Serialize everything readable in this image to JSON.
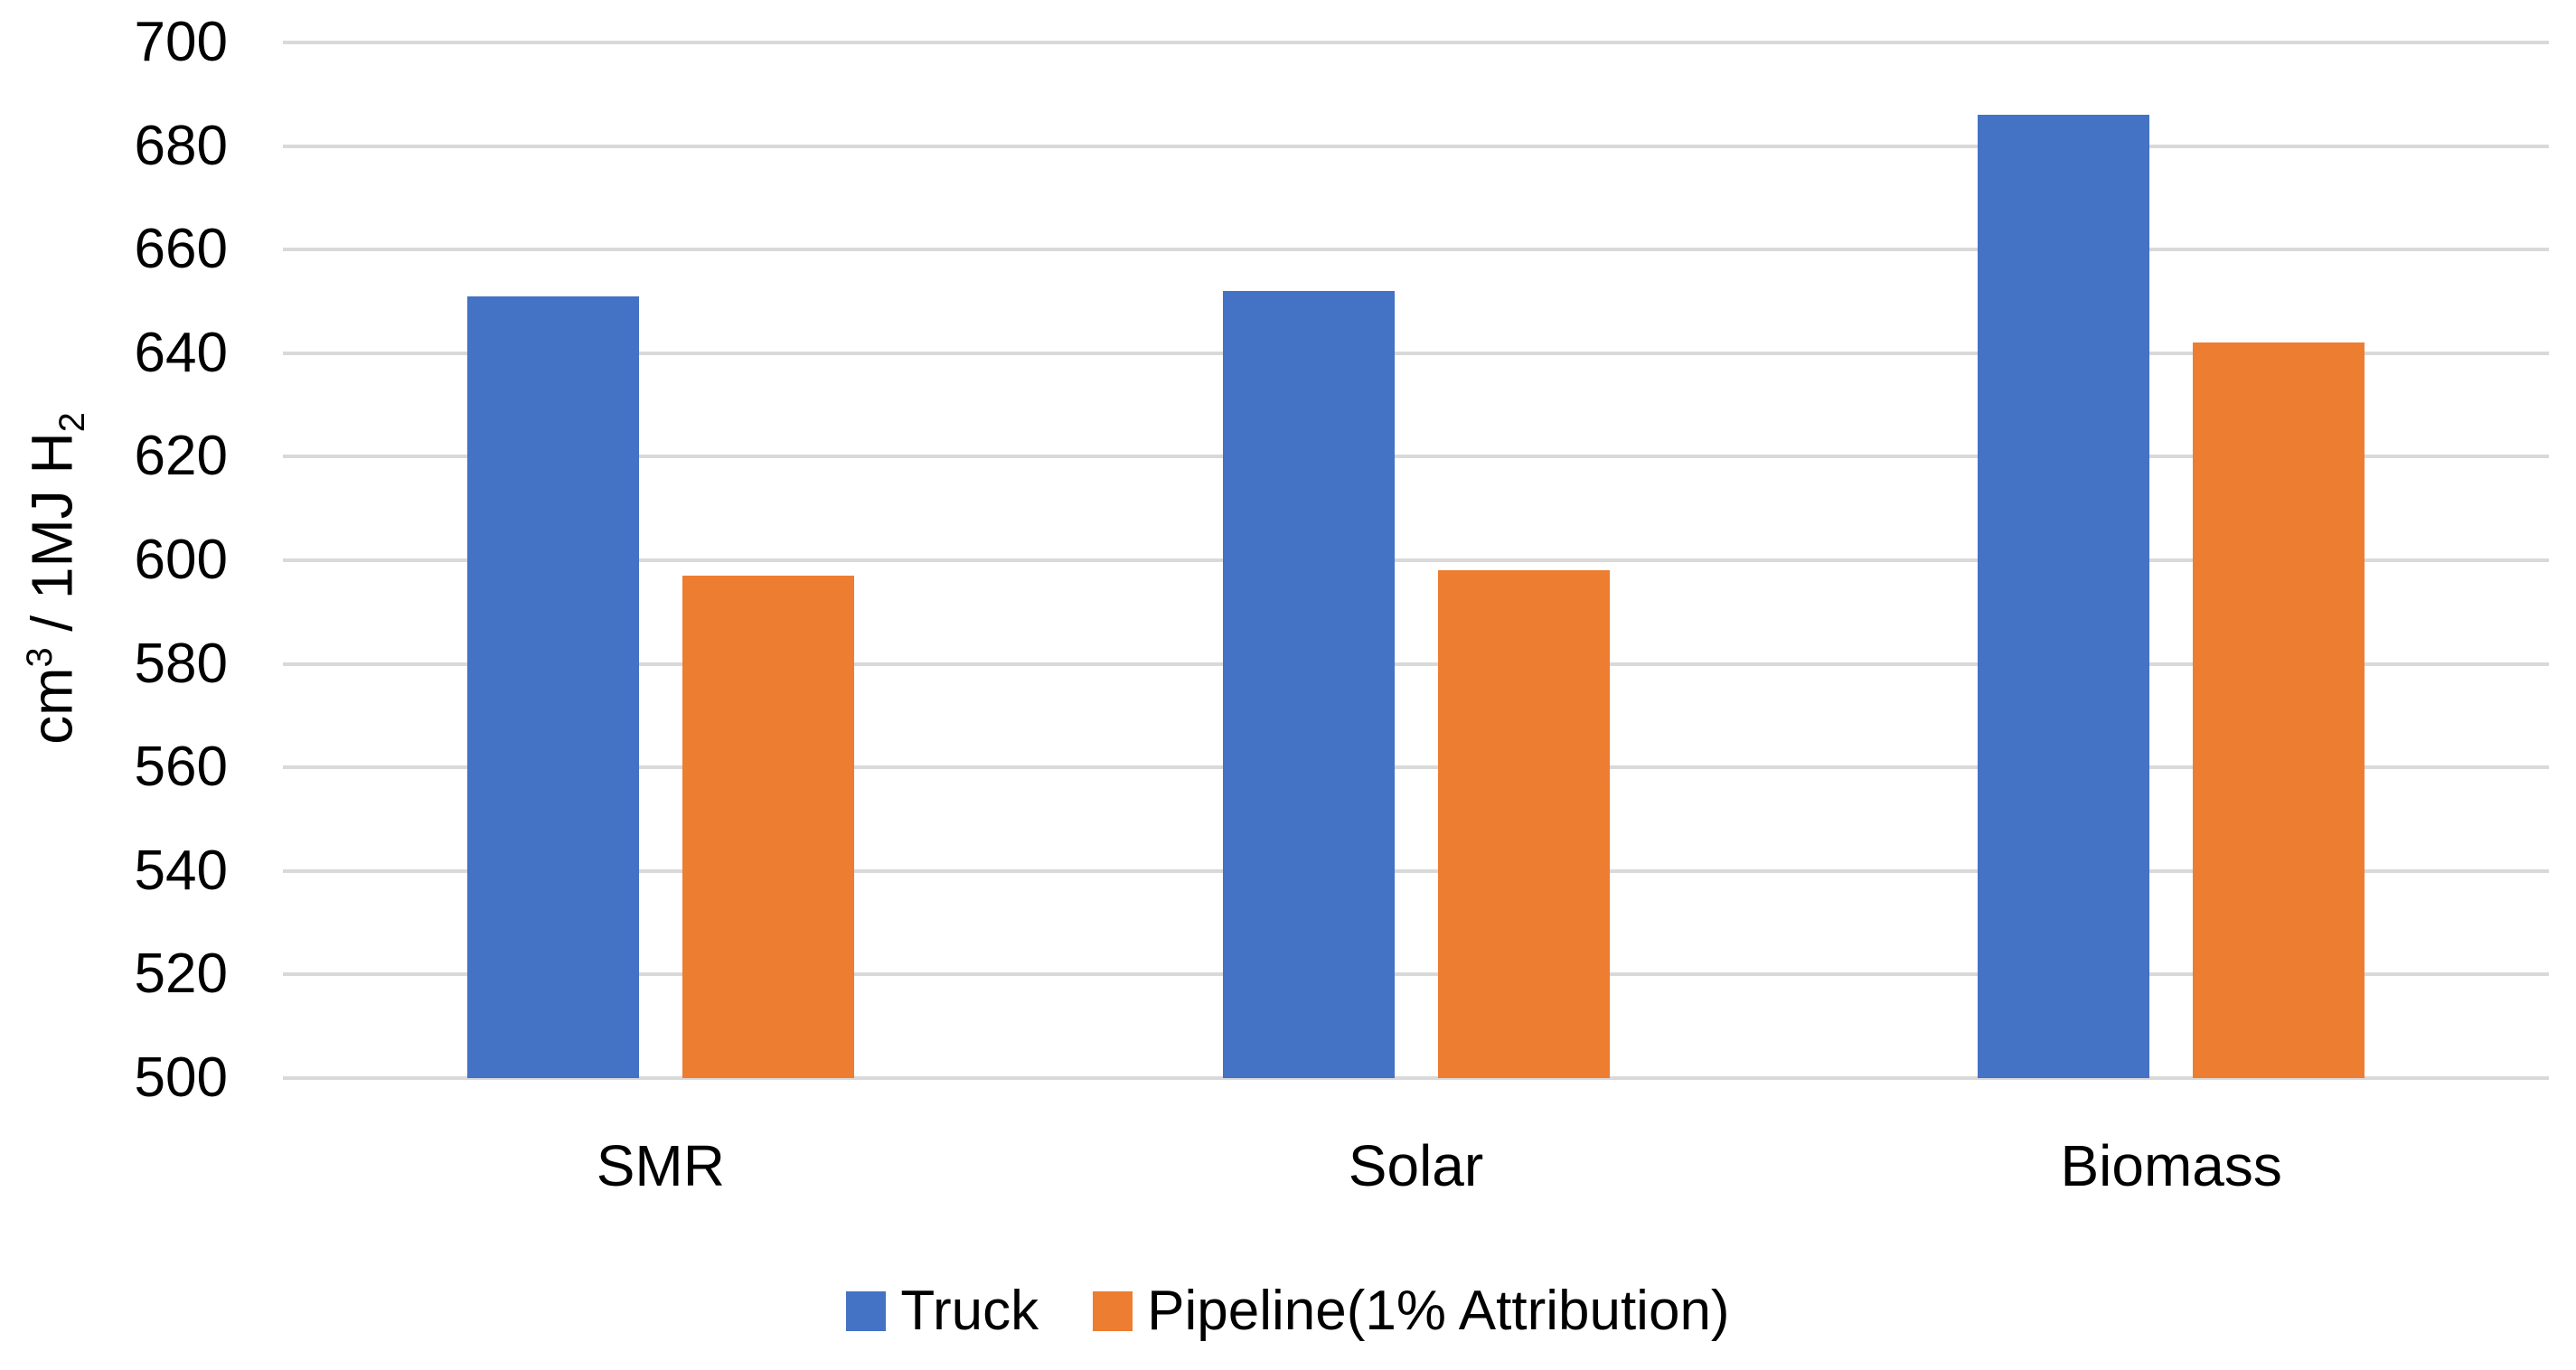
{
  "chart_data": {
    "type": "bar",
    "title": "",
    "categories": [
      "SMR",
      "Solar",
      "Biomass"
    ],
    "series": [
      {
        "name": "Truck",
        "color": "#4472C4",
        "values": [
          651,
          652,
          686
        ]
      },
      {
        "name": "Pipeline(1% Attribution)",
        "color": "#ED7D31",
        "values": [
          597,
          598,
          642
        ]
      }
    ],
    "ylabel": "cm³ / 1MJ H₂",
    "ylabel_parts": {
      "base": "cm",
      "sup": "3",
      "mid": " / 1MJ H",
      "sub": "2"
    },
    "ylim": [
      500,
      700
    ],
    "ytick_step": 20,
    "yticks": [
      700,
      680,
      660,
      640,
      620,
      600,
      580,
      560,
      540,
      520,
      500
    ],
    "grid": true,
    "legend_position": "bottom",
    "colors": {
      "gridline": "#D9D9D9",
      "text": "#000000",
      "background": "#FFFFFF"
    }
  }
}
